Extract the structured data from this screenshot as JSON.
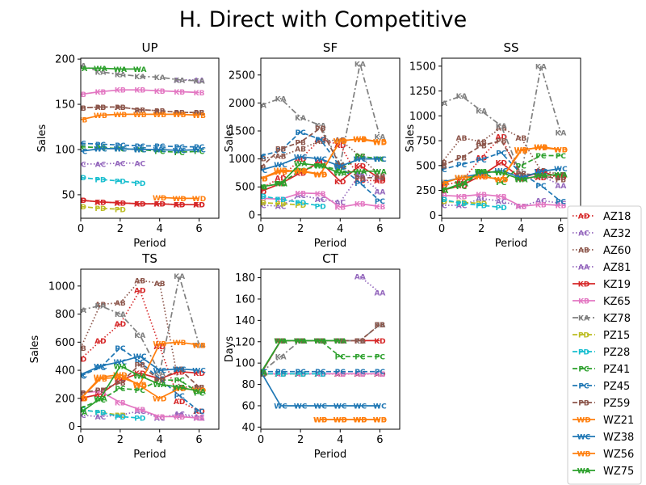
{
  "figure_title": "H. Direct with Competitive",
  "chart_data": [
    {
      "type": "line",
      "title": "UP",
      "xlabel": "Period",
      "ylabel": "Sales",
      "xlim": [
        0,
        7
      ],
      "ylim": [
        24,
        201
      ],
      "xticks": [
        0,
        2,
        4,
        6
      ],
      "yticks": [
        50,
        100,
        150,
        200
      ],
      "series": [
        {
          "name": "AZ18",
          "values": [
            44,
            42,
            41,
            40,
            40,
            39,
            39
          ]
        },
        {
          "name": "AZ32",
          "values": [
            84,
            84,
            85,
            85,
            null,
            null,
            null
          ]
        },
        {
          "name": "AZ60",
          "values": [
            146,
            147,
            147,
            144,
            143,
            141,
            141
          ]
        },
        {
          "name": "AZ81",
          "values": [
            null,
            null,
            null,
            null,
            null,
            177,
            177
          ]
        },
        {
          "name": "KZ19",
          "values": [
            44,
            42,
            41,
            40,
            40,
            39,
            39
          ]
        },
        {
          "name": "KZ65",
          "values": [
            161,
            164,
            166,
            166,
            165,
            164,
            163
          ]
        },
        {
          "name": "KZ78",
          "values": [
            193,
            186,
            183,
            181,
            180,
            177,
            176
          ]
        },
        {
          "name": "PZ15",
          "values": [
            37,
            35,
            34,
            null,
            null,
            null,
            null
          ]
        },
        {
          "name": "PZ28",
          "values": [
            69,
            67,
            65,
            63,
            null,
            null,
            null
          ]
        },
        {
          "name": "PZ41",
          "values": [
            103,
            102,
            101,
            100,
            98,
            97,
            98
          ]
        },
        {
          "name": "PZ45",
          "values": [
            107,
            106,
            105,
            104,
            104,
            103,
            103
          ]
        },
        {
          "name": "PZ59",
          "values": [
            146,
            147,
            147,
            144,
            143,
            141,
            141
          ]
        },
        {
          "name": "WZ21",
          "values": [
            null,
            null,
            null,
            null,
            47,
            46,
            46
          ]
        },
        {
          "name": "WZ38",
          "values": [
            98,
            101,
            101,
            100,
            100,
            99,
            100
          ]
        },
        {
          "name": "WZ56",
          "values": [
            133,
            138,
            139,
            139,
            139,
            139,
            138
          ]
        },
        {
          "name": "WZ75",
          "values": [
            190,
            190,
            189,
            189,
            null,
            null,
            null
          ]
        }
      ]
    },
    {
      "type": "line",
      "title": "SF",
      "xlabel": "Period",
      "ylabel": "Sales",
      "xlim": [
        0,
        7
      ],
      "ylim": [
        -60,
        2800
      ],
      "xticks": [
        0,
        2,
        4,
        6
      ],
      "yticks": [
        0,
        500,
        1000,
        1500,
        2000,
        2500
      ],
      "series": [
        {
          "name": "AZ18",
          "values": [
            480,
            660,
            1000,
            1350,
            1250,
            620,
            610
          ]
        },
        {
          "name": "AZ32",
          "values": [
            170,
            160,
            350,
            280,
            230,
            730,
            670
          ]
        },
        {
          "name": "AZ60",
          "values": [
            1010,
            1050,
            1180,
            1320,
            1340,
            1050,
            700
          ]
        },
        {
          "name": "AZ81",
          "values": [
            null,
            null,
            null,
            null,
            null,
            700,
            420
          ]
        },
        {
          "name": "KZ19",
          "values": [
            420,
            560,
            750,
            950,
            600,
            880,
            650
          ]
        },
        {
          "name": "KZ65",
          "values": [
            300,
            280,
            390,
            380,
            140,
            200,
            150
          ]
        },
        {
          "name": "KZ78",
          "values": [
            1960,
            2080,
            1740,
            1600,
            900,
            2700,
            1400
          ]
        },
        {
          "name": "PZ15",
          "values": [
            220,
            200,
            180,
            null,
            null,
            null,
            null
          ]
        },
        {
          "name": "PZ28",
          "values": [
            340,
            280,
            220,
            160,
            null,
            null,
            null
          ]
        },
        {
          "name": "PZ41",
          "values": [
            500,
            560,
            800,
            880,
            800,
            1050,
            1000
          ]
        },
        {
          "name": "PZ45",
          "values": [
            1050,
            1150,
            1480,
            1350,
            860,
            570,
            250
          ]
        },
        {
          "name": "PZ59",
          "values": [
            850,
            1180,
            1300,
            1550,
            880,
            660,
            670
          ]
        },
        {
          "name": "WZ21",
          "values": [
            650,
            800,
            780,
            720,
            1330,
            1350,
            1300
          ]
        },
        {
          "name": "WZ38",
          "values": [
            800,
            900,
            1040,
            1000,
            870,
            1000,
            1000
          ]
        },
        {
          "name": "WZ56",
          "values": [
            650,
            770,
            790,
            730,
            1320,
            1360,
            1310
          ]
        },
        {
          "name": "WZ75",
          "values": [
            500,
            560,
            920,
            880,
            750,
            780,
            780
          ]
        }
      ]
    },
    {
      "type": "line",
      "title": "SS",
      "xlabel": "Period",
      "ylabel": "Sales",
      "xlim": [
        0,
        7
      ],
      "ylim": [
        -30,
        1580
      ],
      "xticks": [
        0,
        2,
        4,
        6
      ],
      "yticks": [
        0,
        250,
        500,
        750,
        1000,
        1250,
        1500
      ],
      "series": [
        {
          "name": "AZ18",
          "values": [
            300,
            340,
            580,
            790,
            370,
            380,
            400
          ]
        },
        {
          "name": "AZ32",
          "values": [
            100,
            100,
            170,
            140,
            90,
            150,
            120
          ]
        },
        {
          "name": "AZ60",
          "values": [
            530,
            780,
            740,
            880,
            780,
            450,
            410
          ]
        },
        {
          "name": "AZ81",
          "values": [
            null,
            null,
            null,
            null,
            null,
            400,
            300
          ]
        },
        {
          "name": "KZ19",
          "values": [
            250,
            300,
            400,
            530,
            370,
            440,
            380
          ]
        },
        {
          "name": "KZ65",
          "values": [
            200,
            190,
            210,
            190,
            90,
            110,
            100
          ]
        },
        {
          "name": "KZ78",
          "values": [
            1130,
            1200,
            1050,
            900,
            400,
            1500,
            830
          ]
        },
        {
          "name": "PZ15",
          "values": [
            140,
            130,
            120,
            null,
            null,
            null,
            null
          ]
        },
        {
          "name": "PZ28",
          "values": [
            160,
            120,
            100,
            80,
            null,
            null,
            null
          ]
        },
        {
          "name": "PZ41",
          "values": [
            260,
            290,
            440,
            330,
            500,
            600,
            600
          ]
        },
        {
          "name": "PZ45",
          "values": [
            460,
            510,
            560,
            630,
            420,
            300,
            140
          ]
        },
        {
          "name": "PZ59",
          "values": [
            500,
            580,
            700,
            750,
            420,
            400,
            360
          ]
        },
        {
          "name": "WZ21",
          "values": [
            330,
            380,
            390,
            360,
            660,
            680,
            660
          ]
        },
        {
          "name": "WZ38",
          "values": [
            330,
            380,
            420,
            450,
            380,
            440,
            470
          ]
        },
        {
          "name": "WZ56",
          "values": [
            320,
            380,
            390,
            360,
            650,
            690,
            660
          ]
        },
        {
          "name": "WZ75",
          "values": [
            250,
            320,
            440,
            430,
            360,
            400,
            410
          ]
        }
      ]
    },
    {
      "type": "line",
      "title": "TS",
      "xlabel": "Period",
      "ylabel": "Sales",
      "xlim": [
        0,
        7
      ],
      "ylim": [
        -20,
        1120
      ],
      "xticks": [
        0,
        2,
        4,
        6
      ],
      "yticks": [
        0,
        200,
        400,
        600,
        800,
        1000
      ],
      "series": [
        {
          "name": "AZ18",
          "values": [
            480,
            610,
            730,
            970,
            570,
            180,
            110
          ]
        },
        {
          "name": "AZ32",
          "values": [
            80,
            70,
            80,
            110,
            60,
            90,
            70
          ]
        },
        {
          "name": "AZ60",
          "values": [
            560,
            870,
            880,
            1040,
            1020,
            280,
            280
          ]
        },
        {
          "name": "AZ81",
          "values": [
            null,
            null,
            null,
            null,
            null,
            80,
            60
          ]
        },
        {
          "name": "KZ19",
          "values": [
            200,
            230,
            330,
            380,
            340,
            390,
            380
          ]
        },
        {
          "name": "KZ65",
          "values": [
            240,
            250,
            170,
            120,
            70,
            70,
            60
          ]
        },
        {
          "name": "KZ78",
          "values": [
            830,
            860,
            800,
            650,
            380,
            1070,
            580
          ]
        },
        {
          "name": "PZ15",
          "values": [
            120,
            100,
            80,
            null,
            null,
            null,
            null
          ]
        },
        {
          "name": "PZ28",
          "values": [
            120,
            100,
            70,
            60,
            null,
            null,
            null
          ]
        },
        {
          "name": "PZ41",
          "values": [
            130,
            190,
            270,
            260,
            330,
            330,
            240
          ]
        },
        {
          "name": "PZ45",
          "values": [
            360,
            420,
            560,
            460,
            340,
            220,
            110
          ]
        },
        {
          "name": "PZ59",
          "values": [
            240,
            260,
            310,
            440,
            330,
            410,
            280
          ]
        },
        {
          "name": "WZ21",
          "values": [
            200,
            350,
            370,
            290,
            200,
            270,
            260
          ]
        },
        {
          "name": "WZ38",
          "values": [
            370,
            430,
            460,
            500,
            400,
            410,
            400
          ]
        },
        {
          "name": "WZ56",
          "values": [
            200,
            340,
            350,
            300,
            590,
            600,
            580
          ]
        },
        {
          "name": "WZ75",
          "values": [
            100,
            200,
            430,
            360,
            300,
            280,
            250
          ]
        }
      ]
    },
    {
      "type": "line",
      "title": "CT",
      "xlabel": "Period",
      "ylabel": "Days",
      "xlim": [
        0,
        7
      ],
      "ylim": [
        38,
        188
      ],
      "xticks": [
        0,
        2,
        4,
        6
      ],
      "yticks": [
        40,
        60,
        80,
        100,
        120,
        140,
        160,
        180
      ],
      "series": [
        {
          "name": "AZ18",
          "values": [
            90,
            90,
            90,
            90,
            90,
            90,
            90
          ]
        },
        {
          "name": "AZ32",
          "values": [
            90,
            90,
            90,
            90,
            90,
            90,
            90
          ]
        },
        {
          "name": "AZ60",
          "values": [
            90,
            90,
            90,
            90,
            90,
            90,
            90
          ]
        },
        {
          "name": "AZ81",
          "values": [
            null,
            null,
            null,
            null,
            null,
            181,
            166
          ]
        },
        {
          "name": "KZ19",
          "values": [
            90,
            121,
            121,
            121,
            121,
            121,
            121
          ]
        },
        {
          "name": "KZ65",
          "values": [
            90,
            90,
            90,
            90,
            90,
            90,
            90
          ]
        },
        {
          "name": "KZ78",
          "values": [
            91,
            106,
            121,
            121,
            121,
            121,
            136
          ]
        },
        {
          "name": "PZ15",
          "values": [
            90,
            90,
            90,
            null,
            null,
            null,
            null
          ]
        },
        {
          "name": "PZ28",
          "values": [
            90,
            90,
            90,
            90,
            null,
            null,
            null
          ]
        },
        {
          "name": "PZ41",
          "values": [
            90,
            121,
            121,
            121,
            106,
            106,
            106
          ]
        },
        {
          "name": "PZ45",
          "values": [
            92,
            92,
            92,
            92,
            92,
            92,
            92
          ]
        },
        {
          "name": "PZ59",
          "values": [
            90,
            121,
            121,
            121,
            121,
            121,
            136
          ]
        },
        {
          "name": "WZ21",
          "values": [
            null,
            null,
            null,
            47,
            47,
            47,
            47
          ]
        },
        {
          "name": "WZ38",
          "values": [
            92,
            60,
            60,
            60,
            60,
            60,
            60
          ]
        },
        {
          "name": "WZ56",
          "values": [
            null,
            null,
            null,
            47,
            47,
            47,
            47
          ]
        },
        {
          "name": "WZ75",
          "values": [
            91,
            121,
            121,
            121,
            121,
            null,
            null
          ]
        }
      ]
    }
  ],
  "legend": {
    "placement": "right",
    "items": [
      {
        "name": "AZ18",
        "color": "#d62728",
        "style": "dotted",
        "marker": "AD"
      },
      {
        "name": "AZ32",
        "color": "#9467bd",
        "style": "dotted",
        "marker": "AC"
      },
      {
        "name": "AZ60",
        "color": "#8c564b",
        "style": "dotted",
        "marker": "AB"
      },
      {
        "name": "AZ81",
        "color": "#9467bd",
        "style": "dotted",
        "marker": "AA"
      },
      {
        "name": "KZ19",
        "color": "#d62728",
        "style": "solid",
        "marker": "KD"
      },
      {
        "name": "KZ65",
        "color": "#e377c2",
        "style": "solid",
        "marker": "KB"
      },
      {
        "name": "KZ78",
        "color": "#7f7f7f",
        "style": "dashdot",
        "marker": "KA"
      },
      {
        "name": "PZ15",
        "color": "#bcbd22",
        "style": "dashed",
        "marker": "PD"
      },
      {
        "name": "PZ28",
        "color": "#17becf",
        "style": "dashed",
        "marker": "PD"
      },
      {
        "name": "PZ41",
        "color": "#2ca02c",
        "style": "dashed",
        "marker": "PC"
      },
      {
        "name": "PZ45",
        "color": "#1f77b4",
        "style": "dashed",
        "marker": "PC"
      },
      {
        "name": "PZ59",
        "color": "#8c564b",
        "style": "dashed",
        "marker": "PB"
      },
      {
        "name": "WZ21",
        "color": "#ff7f0e",
        "style": "solid",
        "marker": "WD"
      },
      {
        "name": "WZ38",
        "color": "#1f77b4",
        "style": "solid",
        "marker": "WC"
      },
      {
        "name": "WZ56",
        "color": "#ff7f0e",
        "style": "solid",
        "marker": "WB"
      },
      {
        "name": "WZ75",
        "color": "#2ca02c",
        "style": "solid",
        "marker": "WA"
      }
    ]
  }
}
